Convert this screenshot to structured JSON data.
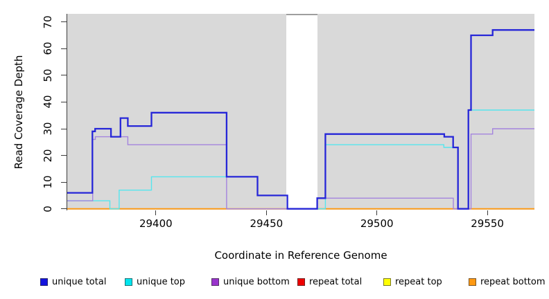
{
  "chart_data": {
    "type": "line",
    "line_style": "step-after",
    "title": "",
    "xlabel": "Coordinate in Reference Genome",
    "ylabel": "Read Coverage Depth",
    "xlim": [
      29359.9,
      29571.3
    ],
    "ylim": [
      0,
      73
    ],
    "x_ticks": [
      29400,
      29450,
      29500,
      29550
    ],
    "y_ticks": [
      0,
      10,
      20,
      30,
      40,
      50,
      60,
      70
    ],
    "plot_bg_color": "#d9d9d9",
    "grid": "off",
    "legend_position": "bottom",
    "masked_region": {
      "x_start": 29459,
      "x_end": 29473
    },
    "series": [
      {
        "name": "repeat total",
        "color": "#ee0000",
        "line_width": 1.3,
        "points": [
          [
            29359.9,
            0
          ]
        ]
      },
      {
        "name": "repeat top",
        "color": "#ffff00",
        "line_width": 1.3,
        "points": [
          [
            29359.9,
            0
          ]
        ]
      },
      {
        "name": "repeat bottom",
        "color": "#ff9912",
        "line_width": 1.8,
        "points": [
          [
            29359.9,
            0
          ]
        ]
      },
      {
        "name": "unique top",
        "color": "#55e6ee",
        "line_width": 1.4,
        "points": [
          [
            29359.9,
            3
          ],
          [
            29379.2,
            0
          ],
          [
            29383.4,
            7
          ],
          [
            29398,
            12
          ],
          [
            29446,
            5
          ],
          [
            29459.5,
            0
          ],
          [
            29476.7,
            24
          ],
          [
            29530.3,
            23
          ],
          [
            29536.7,
            0
          ],
          [
            29541.4,
            37
          ]
        ]
      },
      {
        "name": "unique bottom",
        "color": "#a484de",
        "line_width": 1.4,
        "points": [
          [
            29359.9,
            3
          ],
          [
            29371.4,
            26
          ],
          [
            29372.6,
            27
          ],
          [
            29387.3,
            24
          ],
          [
            29432,
            0
          ],
          [
            29473,
            4
          ],
          [
            29534.6,
            0
          ],
          [
            29542.6,
            28
          ],
          [
            29552.4,
            30
          ]
        ]
      },
      {
        "name": "unique total",
        "color": "#2626d8",
        "line_width": 2.3,
        "points": [
          [
            29359.9,
            6
          ],
          [
            29371.3,
            29
          ],
          [
            29372.5,
            30
          ],
          [
            29379.7,
            27
          ],
          [
            29384,
            34
          ],
          [
            29387.3,
            31
          ],
          [
            29398,
            36
          ],
          [
            29432,
            12
          ],
          [
            29446,
            5
          ],
          [
            29459.5,
            0
          ],
          [
            29473,
            4
          ],
          [
            29476.7,
            28
          ],
          [
            29530.5,
            27
          ],
          [
            29534.5,
            23
          ],
          [
            29536.7,
            0
          ],
          [
            29541.4,
            37
          ],
          [
            29542.6,
            65
          ],
          [
            29552.4,
            67
          ]
        ]
      }
    ],
    "legend": [
      {
        "label": "unique total",
        "color": "#1313dd"
      },
      {
        "label": "unique top",
        "color": "#00e5ee"
      },
      {
        "label": "unique bottom",
        "color": "#9933cc"
      },
      {
        "label": "repeat total",
        "color": "#ee0000"
      },
      {
        "label": "repeat top",
        "color": "#ffff00"
      },
      {
        "label": "repeat bottom",
        "color": "#ff9912"
      }
    ]
  }
}
